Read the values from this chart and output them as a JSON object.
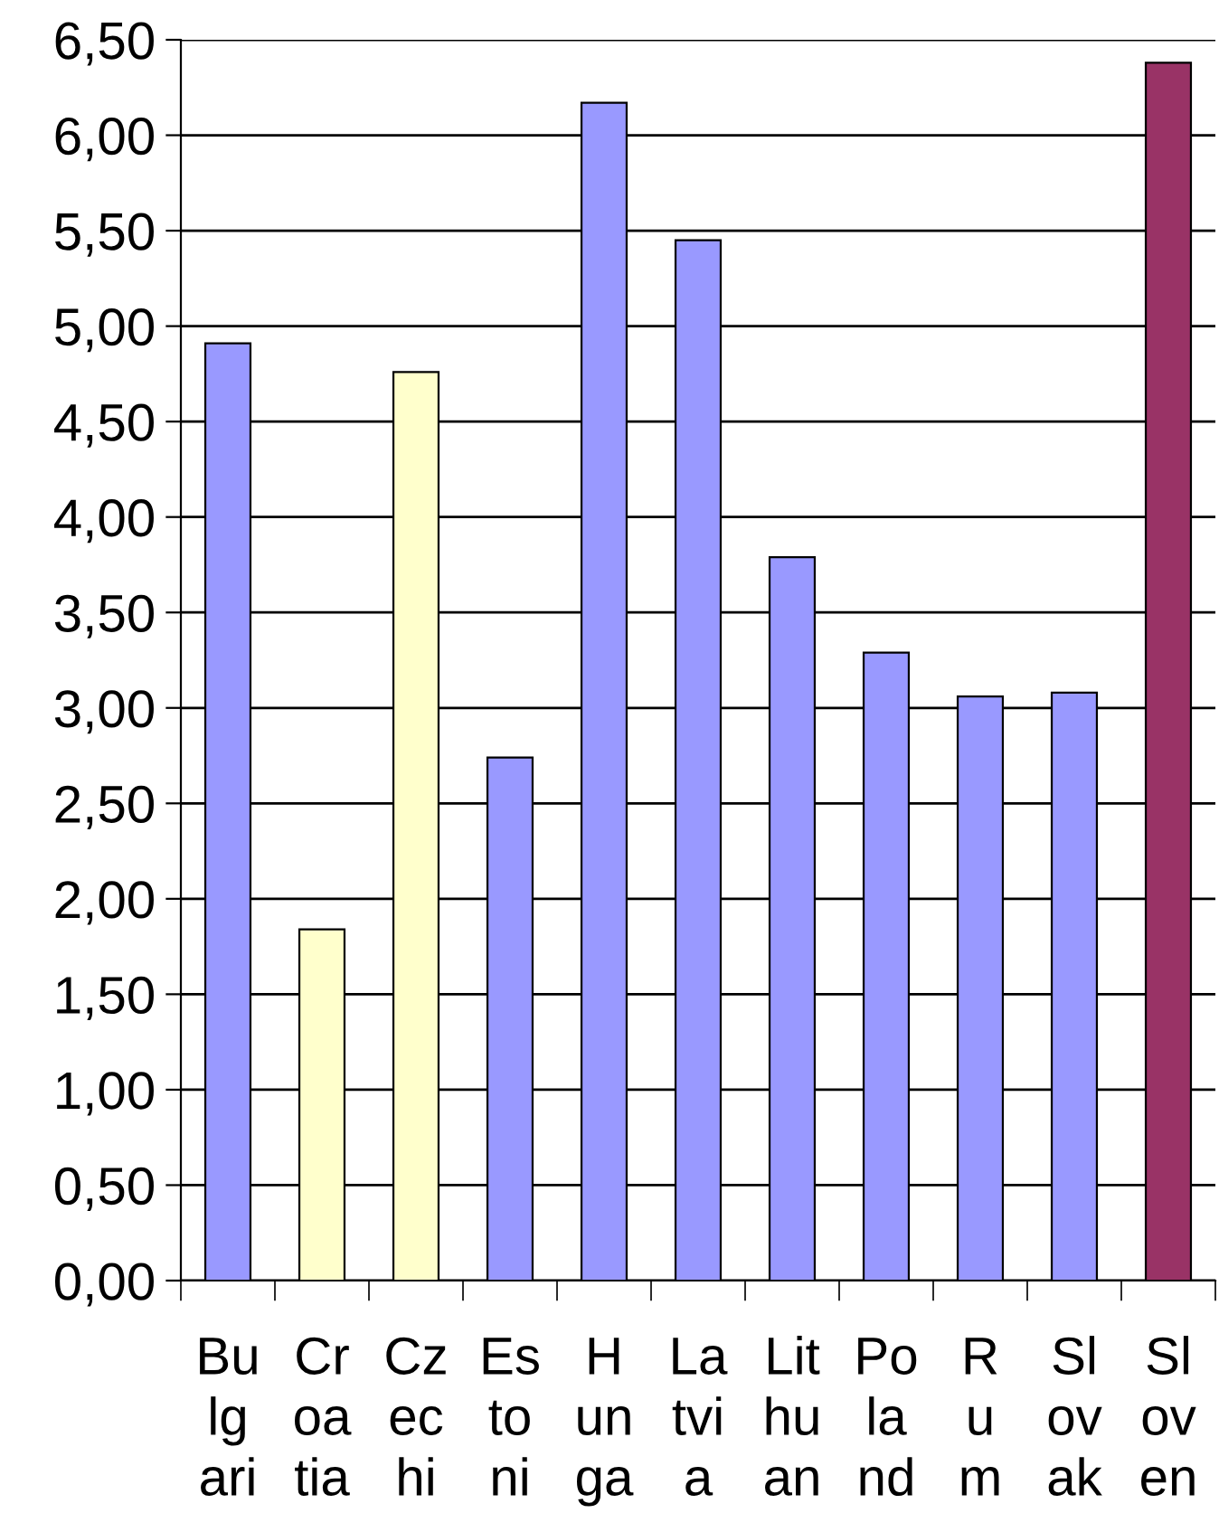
{
  "chart_data": {
    "type": "bar",
    "categories": [
      "Bu\nlg\nari",
      "Cr\noa\ntia",
      "Cz\nec\nhi",
      "Es\nto\nni",
      "H\nun\nga",
      "La\ntvi\na",
      "Lit\nhu\nan",
      "Po\nla\nnd",
      "R\nu\nm",
      "Sl\nov\nak",
      "Sl\nov\nen"
    ],
    "values": [
      4.91,
      1.84,
      4.76,
      2.74,
      6.17,
      5.45,
      3.79,
      3.29,
      3.06,
      3.08,
      6.38
    ],
    "colors": [
      "#9999ff",
      "#ffffcc",
      "#ffffcc",
      "#9999ff",
      "#9999ff",
      "#9999ff",
      "#9999ff",
      "#9999ff",
      "#9999ff",
      "#9999ff",
      "#993366"
    ],
    "ylim": [
      0,
      6.5
    ],
    "yticks": [
      {
        "value": 0,
        "label": "0,00"
      },
      {
        "value": 0.5,
        "label": "0,50"
      },
      {
        "value": 1,
        "label": "1,00"
      },
      {
        "value": 1.5,
        "label": "1,50"
      },
      {
        "value": 2,
        "label": "2,00"
      },
      {
        "value": 2.5,
        "label": "2,50"
      },
      {
        "value": 3,
        "label": "3,00"
      },
      {
        "value": 3.5,
        "label": "3,50"
      },
      {
        "value": 4,
        "label": "4,00"
      },
      {
        "value": 4.5,
        "label": "4,50"
      },
      {
        "value": 5,
        "label": "5,00"
      },
      {
        "value": 5.5,
        "label": "5,50"
      },
      {
        "value": 6,
        "label": "6,00"
      },
      {
        "value": 6.5,
        "label": "6,50"
      }
    ],
    "grid": "y"
  }
}
